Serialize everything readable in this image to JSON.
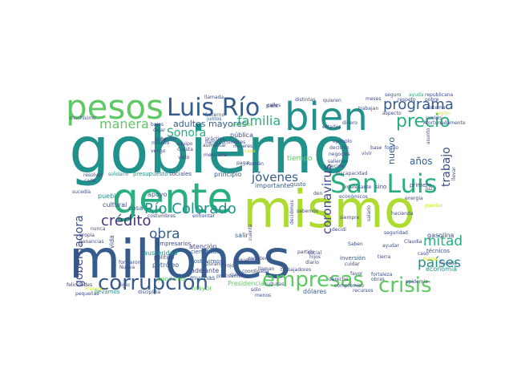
{
  "palette": {
    "deep_purple": "#46337e",
    "indigo": "#3e4a89",
    "blue": "#365c8d",
    "steel_blue": "#2c728e",
    "teal": "#21918c",
    "sea_green": "#28ae80",
    "green": "#5ec962",
    "lime": "#addc30",
    "yellow_green": "#d2e21b",
    "yellow": "#fde725"
  },
  "words": [
    {
      "text": "gobierno"
    },
    {
      "text": "millones"
    },
    {
      "text": "mismo"
    },
    {
      "text": "gente"
    },
    {
      "text": "pesos"
    },
    {
      "text": "bien"
    },
    {
      "text": "Luis Río"
    },
    {
      "text": "San Luis"
    },
    {
      "text": "corrupción"
    },
    {
      "text": "empresas"
    },
    {
      "text": "crisis"
    },
    {
      "text": "programa"
    },
    {
      "text": "precio"
    },
    {
      "text": "familia"
    },
    {
      "text": "manera"
    },
    {
      "text": "Sonora"
    },
    {
      "text": "Río Colorado"
    },
    {
      "text": "crédito"
    },
    {
      "text": "obra"
    },
    {
      "text": "jóvenes"
    },
    {
      "text": "coronavirus"
    },
    {
      "text": "mitad"
    },
    {
      "text": "países"
    },
    {
      "text": "gobernadora"
    },
    {
      "text": "trabajo"
    },
    {
      "text": "adultos mayores"
    },
    {
      "text": "nuevo"
    },
    {
      "text": "años"
    },
    {
      "text": "tiempo"
    },
    {
      "text": "salir"
    },
    {
      "text": "importante"
    },
    {
      "text": "principio"
    },
    {
      "text": "apoyo"
    },
    {
      "text": "cosa"
    },
    {
      "text": "muchas"
    },
    {
      "text": "austeridad"
    },
    {
      "text": "atención"
    },
    {
      "text": "petróleo"
    },
    {
      "text": "gasolina"
    },
    {
      "text": "dólares"
    },
    {
      "text": "mayor"
    },
    {
      "text": "Presidencia"
    },
    {
      "text": "adelante"
    },
    {
      "text": "economía"
    },
    {
      "text": "inversión"
    },
    {
      "text": "técnicos"
    },
    {
      "text": "pública"
    },
    {
      "text": "cultural"
    },
    {
      "text": "pueblo"
    },
    {
      "text": "vida"
    },
    {
      "text": "político"
    },
    {
      "text": "pandemia"
    },
    {
      "text": "sostuvimos"
    },
    {
      "text": "científicos"
    },
    {
      "text": "empresarios"
    },
    {
      "text": "llevamos"
    },
    {
      "text": "presupuesto"
    },
    {
      "text": "sociales"
    },
    {
      "text": "práctica"
    },
    {
      "text": "aumentar"
    },
    {
      "text": "mexicana"
    },
    {
      "text": "llamadohombres"
    },
    {
      "text": "equipo"
    },
    {
      "text": "fraterno"
    },
    {
      "text": "juntos"
    },
    {
      "text": "privados"
    },
    {
      "text": "cuesta"
    },
    {
      "text": "modelo"
    },
    {
      "text": "vengo"
    },
    {
      "text": "resolver"
    },
    {
      "text": "cada"
    },
    {
      "text": "solidario"
    },
    {
      "text": "sucedía"
    },
    {
      "text": "nunca"
    },
    {
      "text": "formaron"
    },
    {
      "text": "Nueva"
    },
    {
      "text": "precisamente"
    },
    {
      "text": "cuida"
    },
    {
      "text": "sólo"
    },
    {
      "text": "coordinada"
    },
    {
      "text": "pequeños"
    },
    {
      "text": "menos"
    },
    {
      "text": "social"
    },
    {
      "text": "hijos"
    },
    {
      "text": "diario"
    },
    {
      "text": "Saben"
    },
    {
      "text": "fortaleza"
    },
    {
      "text": "epidemia"
    },
    {
      "text": "recursos"
    },
    {
      "text": "siempre"
    },
    {
      "text": "den"
    },
    {
      "text": "decidimos"
    },
    {
      "text": "gusto"
    },
    {
      "text": "sino"
    },
    {
      "text": "seguro"
    },
    {
      "text": "ayuda"
    },
    {
      "text": "republicana"
    },
    {
      "text": "aspecto"
    },
    {
      "text": "primero"
    },
    {
      "text": "llevar"
    },
    {
      "text": "Claudia"
    },
    {
      "text": "caso"
    },
    {
      "text": "pobre"
    },
    {
      "text": "meses"
    },
    {
      "text": "trabajan"
    },
    {
      "text": "país"
    },
    {
      "text": "ejemplo"
    },
    {
      "text": "decisión"
    },
    {
      "text": "negocios"
    },
    {
      "text": "saliendo"
    },
    {
      "text": "decirle"
    },
    {
      "text": "discapacidad"
    },
    {
      "text": "económicos"
    },
    {
      "text": "llamada"
    },
    {
      "text": "muchísimo"
    },
    {
      "text": "bajos"
    },
    {
      "text": "dejar"
    },
    {
      "text": "visto"
    },
    {
      "text": "mujeres"
    },
    {
      "text": "casa"
    },
    {
      "text": "paga"
    },
    {
      "text": "puedan"
    },
    {
      "text": "asunto"
    },
    {
      "text": "felicidades"
    },
    {
      "text": "siglo"
    },
    {
      "text": "rojo"
    },
    {
      "text": "Román"
    },
    {
      "text": "echo"
    },
    {
      "text": "hecho"
    },
    {
      "text": "salario"
    },
    {
      "text": "sistema"
    },
    {
      "text": "cuenta"
    },
    {
      "text": "sueldo"
    },
    {
      "text": "Durango"
    },
    {
      "text": "carretera"
    },
    {
      "text": "llaman"
    },
    {
      "text": "enfrentar"
    },
    {
      "text": "costumbres"
    },
    {
      "text": "decidí"
    },
    {
      "text": "sabemos"
    },
    {
      "text": "partido"
    },
    {
      "text": "interesante"
    },
    {
      "text": "quieren"
    },
    {
      "text": "propia"
    },
    {
      "text": "ganancias"
    },
    {
      "text": "seguridad"
    },
    {
      "text": "ayudar"
    },
    {
      "text": "región"
    },
    {
      "text": "estados"
    },
    {
      "text": "distintas"
    },
    {
      "text": "calles"
    },
    {
      "text": "dinero"
    },
    {
      "text": "respeto"
    },
    {
      "text": "pequeñas"
    },
    {
      "text": "trabajadores"
    },
    {
      "text": "Francia"
    },
    {
      "text": "disciplina"
    },
    {
      "text": "Patria"
    },
    {
      "text": "Fiscalía"
    },
    {
      "text": "cuidar"
    },
    {
      "text": "obras"
    },
    {
      "text": "Afortunadamente"
    },
    {
      "text": "culturas"
    },
    {
      "text": "compromiso"
    },
    {
      "text": "derecho"
    },
    {
      "text": "favor"
    },
    {
      "text": "tierra"
    },
    {
      "text": "hacienda"
    },
    {
      "text": "energía"
    },
    {
      "text": "luz"
    },
    {
      "text": "fondo"
    },
    {
      "text": "base"
    },
    {
      "text": "vivir"
    }
  ]
}
